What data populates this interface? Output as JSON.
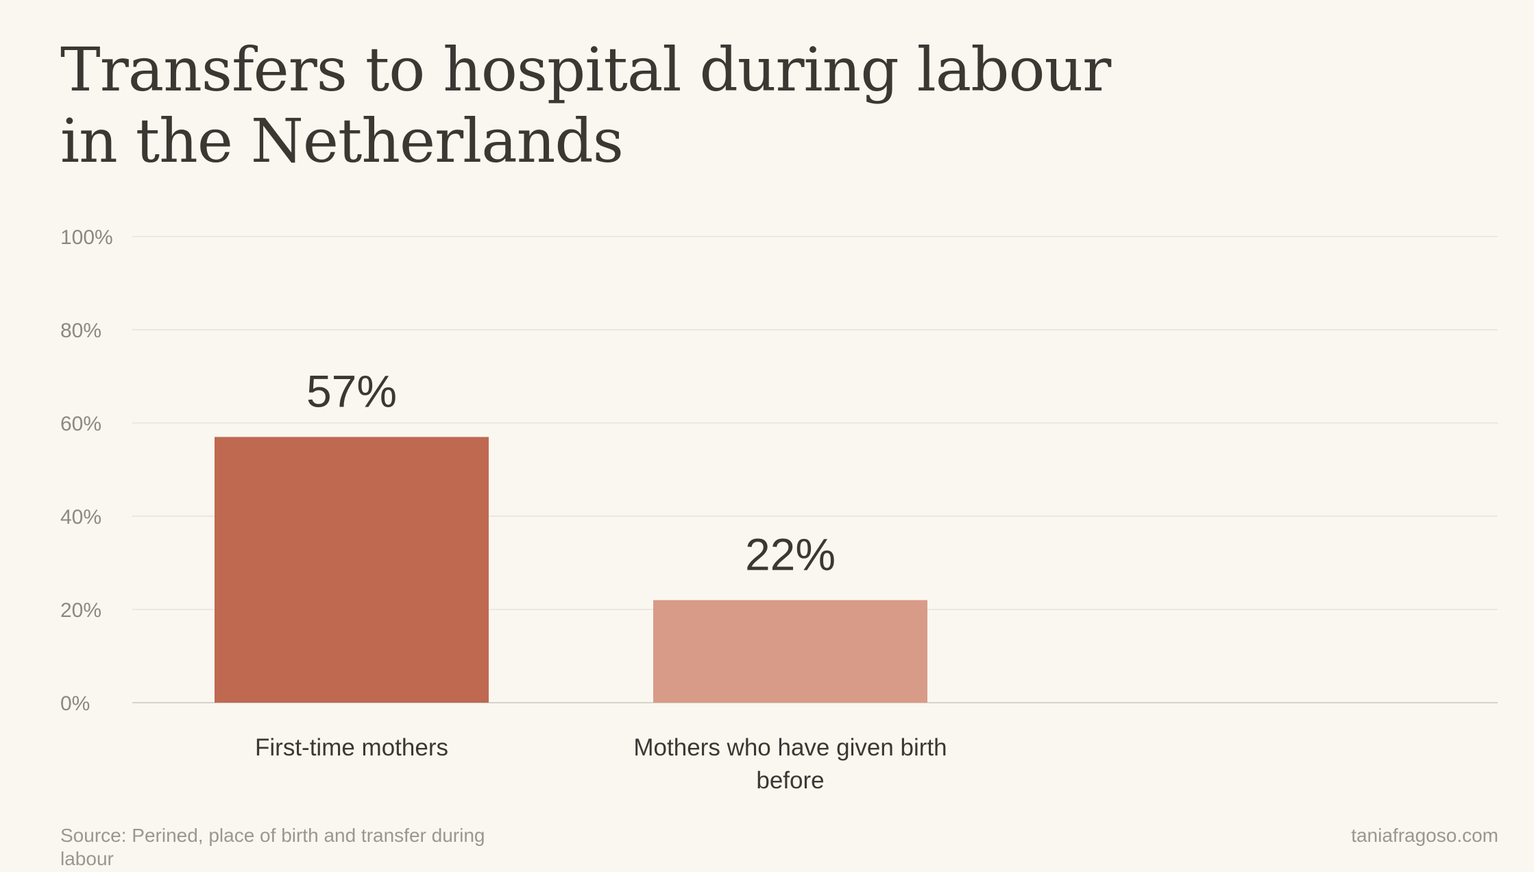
{
  "chart_data": {
    "type": "bar",
    "title": "Transfers to hospital during labour in the Netherlands",
    "categories": [
      "First-time mothers",
      "Mothers who have given birth before"
    ],
    "values": [
      57,
      22
    ],
    "data_labels": [
      "57%",
      "22%"
    ],
    "ylim": [
      0,
      100
    ],
    "yticks": [
      0,
      20,
      40,
      60,
      80,
      100
    ],
    "ytick_labels": [
      "0%",
      "20%",
      "40%",
      "60%",
      "80%",
      "100%"
    ],
    "grid": true,
    "legend": "none",
    "colors": [
      "#bf6951",
      "#d89b88"
    ],
    "gridline_color": "#e8e4dc",
    "baseline_color": "#d7d3cb"
  },
  "footer": {
    "source": "Source: Perined, place of birth and transfer during labour",
    "credit": "taniafragoso.com"
  }
}
